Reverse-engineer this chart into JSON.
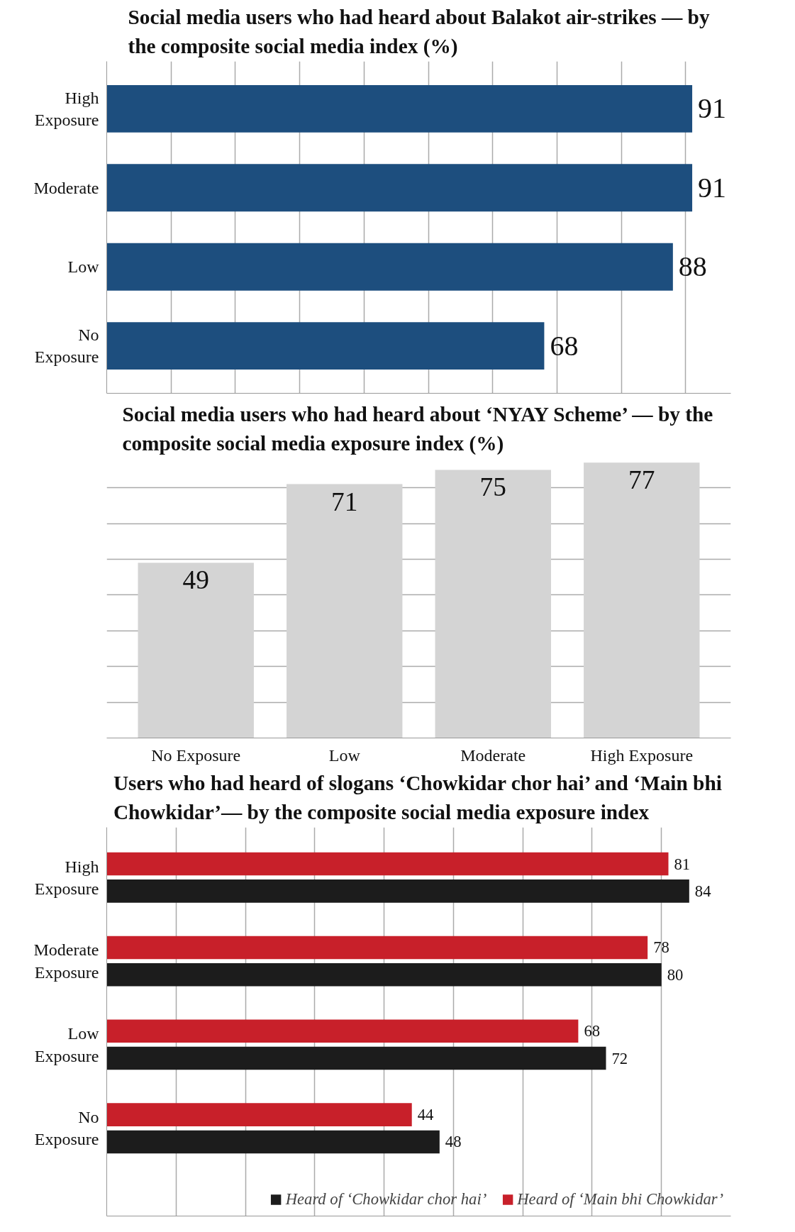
{
  "chart_data": [
    {
      "type": "bar",
      "orientation": "horizontal",
      "title": "Social media users who had heard about Balakot air-strikes — by the composite social media index (%)",
      "categories": [
        "High Exposure",
        "Moderate",
        "Low",
        "No Exposure"
      ],
      "values": [
        91,
        91,
        88,
        68
      ],
      "color": "#1d4e7e",
      "data_labels": true,
      "xlim": [
        0,
        97
      ],
      "xticks": [
        {
          "value": 0,
          "label": null
        },
        {
          "value": 10,
          "label": null
        },
        {
          "value": 20,
          "label": null
        },
        {
          "value": 30,
          "label": null
        },
        {
          "value": 40,
          "label": null
        },
        {
          "value": 50,
          "label": null
        },
        {
          "value": 60,
          "label": null
        },
        {
          "value": 70,
          "label": null
        },
        {
          "value": 80,
          "label": null
        },
        {
          "value": 90,
          "label": null
        }
      ],
      "grid": "x",
      "tick_labels": "y"
    },
    {
      "type": "bar",
      "title": "Social media users who had heard about ‘NYAY Scheme’ — by the composite social media exposure index (%)",
      "categories": [
        "No Exposure",
        "Low",
        "Moderate",
        "High Exposure"
      ],
      "values": [
        49,
        71,
        75,
        77
      ],
      "color": "#d4d4d4",
      "data_labels": true,
      "yticks": [
        {
          "value": 0,
          "label": null
        },
        {
          "value": 10,
          "label": null
        },
        {
          "value": 20,
          "label": null
        },
        {
          "value": 30,
          "label": null
        },
        {
          "value": 40,
          "label": null
        },
        {
          "value": 50,
          "label": null
        },
        {
          "value": 60,
          "label": null
        },
        {
          "value": 70,
          "label": null
        }
      ],
      "grid": "y",
      "tick_labels": "x"
    },
    {
      "type": "bar",
      "orientation": "horizontal",
      "title": "Users who had heard of slogans ‘Chowkidar chor hai’ and ‘Main bhi Chowkidar’— by the composite social media exposure index",
      "categories": [
        "High Exposure",
        "Moderate Exposure",
        "Low Exposure",
        "No Exposure"
      ],
      "series": [
        {
          "name": "Heard of ‘Chowkidar chor hai’",
          "color": "#1c1c1c",
          "values": [
            84,
            80,
            72,
            48
          ]
        },
        {
          "name": "Heard of ‘Main bhi Chowkidar’",
          "color": "#c8202a",
          "values": [
            81,
            78,
            68,
            44
          ]
        }
      ],
      "data_labels": true,
      "xlim": [
        0,
        90
      ],
      "xticks": [
        {
          "value": 0,
          "label": null
        },
        {
          "value": 10,
          "label": null
        },
        {
          "value": 20,
          "label": null
        },
        {
          "value": 30,
          "label": null
        },
        {
          "value": 40,
          "label": null
        },
        {
          "value": 50,
          "label": null
        },
        {
          "value": 60,
          "label": null
        },
        {
          "value": 70,
          "label": null
        },
        {
          "value": 80,
          "label": null
        }
      ],
      "grid": "x",
      "tick_labels": "y",
      "legend": "bottom"
    }
  ]
}
